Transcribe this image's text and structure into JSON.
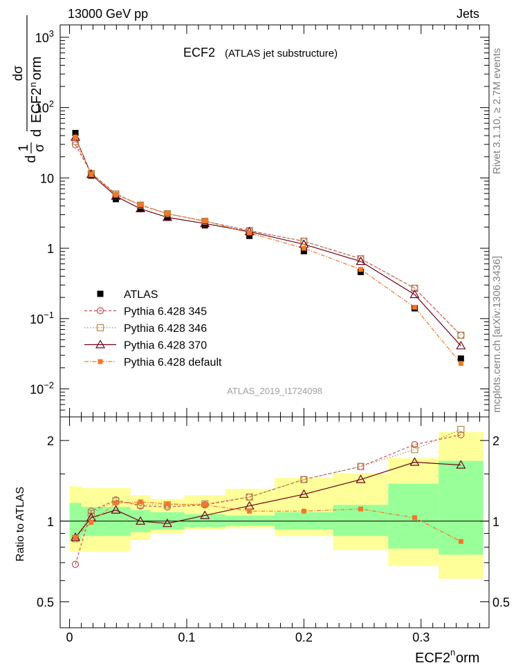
{
  "header": {
    "left": "13000 GeV pp",
    "right": "Jets"
  },
  "side_labels": {
    "rivet": "Rivet 3.1.10, ≥ 2.7M events",
    "mcplots": "mcplots.cern.ch [arXiv:1306.3436]"
  },
  "colors": {
    "atlas": "#000000",
    "p345": "#c84b58",
    "p346": "#b08a4a",
    "p370": "#6b0016",
    "pdefault": "#f07828",
    "band_inner": "#99ff99",
    "band_outer": "#ffff99"
  },
  "chart_data": [
    {
      "type": "line",
      "title": "ECF2",
      "subtitle": "(ATLAS jet substructure)",
      "watermark": "ATLAS_2019_I1724098",
      "ylabel": "1/σ dσ/d ECF2^norm",
      "yscale": "log",
      "ylim": [
        0.004,
        1500
      ],
      "xlim": [
        -0.008,
        0.358
      ],
      "y_ticks": [
        {
          "value": 0.01,
          "base": "10",
          "exp": "−2"
        },
        {
          "value": 0.1,
          "base": "10",
          "exp": "−1"
        },
        {
          "value": 1,
          "base": "1",
          "exp": ""
        },
        {
          "value": 10,
          "base": "10",
          "exp": ""
        },
        {
          "value": 100,
          "base": "10",
          "exp": "2"
        },
        {
          "value": 1000,
          "base": "10",
          "exp": "3"
        }
      ],
      "x": [
        0.005,
        0.0185,
        0.0395,
        0.0605,
        0.0835,
        0.1155,
        0.1535,
        0.2,
        0.2485,
        0.2945,
        0.334
      ],
      "x_edges": [
        0.0,
        0.01,
        0.027,
        0.052,
        0.069,
        0.098,
        0.133,
        0.175,
        0.225,
        0.272,
        0.315,
        0.353
      ],
      "series": [
        {
          "key": "atlas",
          "name": "ATLAS",
          "values": [
            43.5,
            10.8,
            5.0,
            3.6,
            2.75,
            2.12,
            1.5,
            0.91,
            0.46,
            0.14,
            0.027
          ]
        },
        {
          "key": "p345",
          "name": "Pythia 6.428 345",
          "values": [
            29.5,
            11.7,
            5.95,
            4.1,
            3.1,
            2.42,
            1.78,
            1.26,
            0.71,
            0.27,
            0.058
          ]
        },
        {
          "key": "p346",
          "name": "Pythia 6.428 346",
          "values": [
            33.0,
            11.5,
            5.9,
            4.1,
            3.1,
            2.42,
            1.78,
            1.26,
            0.71,
            0.27,
            0.058
          ]
        },
        {
          "key": "p370",
          "name": "Pythia 6.428 370",
          "values": [
            38.0,
            11.2,
            5.5,
            3.65,
            2.75,
            2.25,
            1.72,
            1.14,
            0.65,
            0.22,
            0.041
          ]
        },
        {
          "key": "pdefault",
          "name": "Pythia 6.428 default",
          "values": [
            38.0,
            11.2,
            5.8,
            4.15,
            3.1,
            2.45,
            1.65,
            1.0,
            0.5,
            0.145,
            0.023
          ]
        }
      ]
    },
    {
      "type": "line",
      "ylabel": "Ratio to ATLAS",
      "xlabel": "ECF2^norm",
      "yscale": "log",
      "ylim": [
        0.4,
        2.45
      ],
      "xlim": [
        -0.008,
        0.358
      ],
      "y_ticks": [
        0.5,
        1,
        2
      ],
      "x_ticks": [
        0,
        0.1,
        0.2,
        0.3
      ],
      "x": [
        0.005,
        0.0185,
        0.0395,
        0.0605,
        0.0835,
        0.1155,
        0.1535,
        0.2,
        0.2485,
        0.2945,
        0.334
      ],
      "band_inner": [
        [
          0.85,
          1.17
        ],
        [
          0.88,
          1.13
        ],
        [
          0.88,
          1.13
        ],
        [
          0.91,
          1.1
        ],
        [
          0.93,
          1.08
        ],
        [
          0.95,
          1.06
        ],
        [
          0.96,
          1.05
        ],
        [
          0.93,
          1.08
        ],
        [
          0.88,
          1.15
        ],
        [
          0.79,
          1.38
        ],
        [
          0.75,
          1.68
        ]
      ],
      "band_outer": [
        [
          0.77,
          1.35
        ],
        [
          0.77,
          1.33
        ],
        [
          0.77,
          1.33
        ],
        [
          0.85,
          1.25
        ],
        [
          0.9,
          1.21
        ],
        [
          0.93,
          1.25
        ],
        [
          0.94,
          1.32
        ],
        [
          0.88,
          1.45
        ],
        [
          0.78,
          1.51
        ],
        [
          0.68,
          1.72
        ],
        [
          0.61,
          2.15
        ]
      ],
      "series": [
        {
          "key": "p345",
          "name": "Pythia 6.428 345",
          "values": [
            0.69,
            1.09,
            1.2,
            1.14,
            1.13,
            1.15,
            1.23,
            1.43,
            1.6,
            1.93,
            2.1
          ]
        },
        {
          "key": "p346",
          "name": "Pythia 6.428 346",
          "values": [
            0.86,
            1.07,
            1.19,
            1.15,
            1.15,
            1.16,
            1.23,
            1.43,
            1.6,
            1.85,
            2.2
          ]
        },
        {
          "key": "p370",
          "name": "Pythia 6.428 370",
          "values": [
            0.87,
            1.03,
            1.1,
            1.0,
            0.98,
            1.05,
            1.14,
            1.26,
            1.43,
            1.66,
            1.62
          ]
        },
        {
          "key": "pdefault",
          "name": "Pythia 6.428 default",
          "values": [
            0.87,
            0.99,
            1.17,
            1.18,
            1.16,
            1.15,
            1.09,
            1.09,
            1.11,
            1.03,
            0.84
          ]
        }
      ]
    }
  ]
}
